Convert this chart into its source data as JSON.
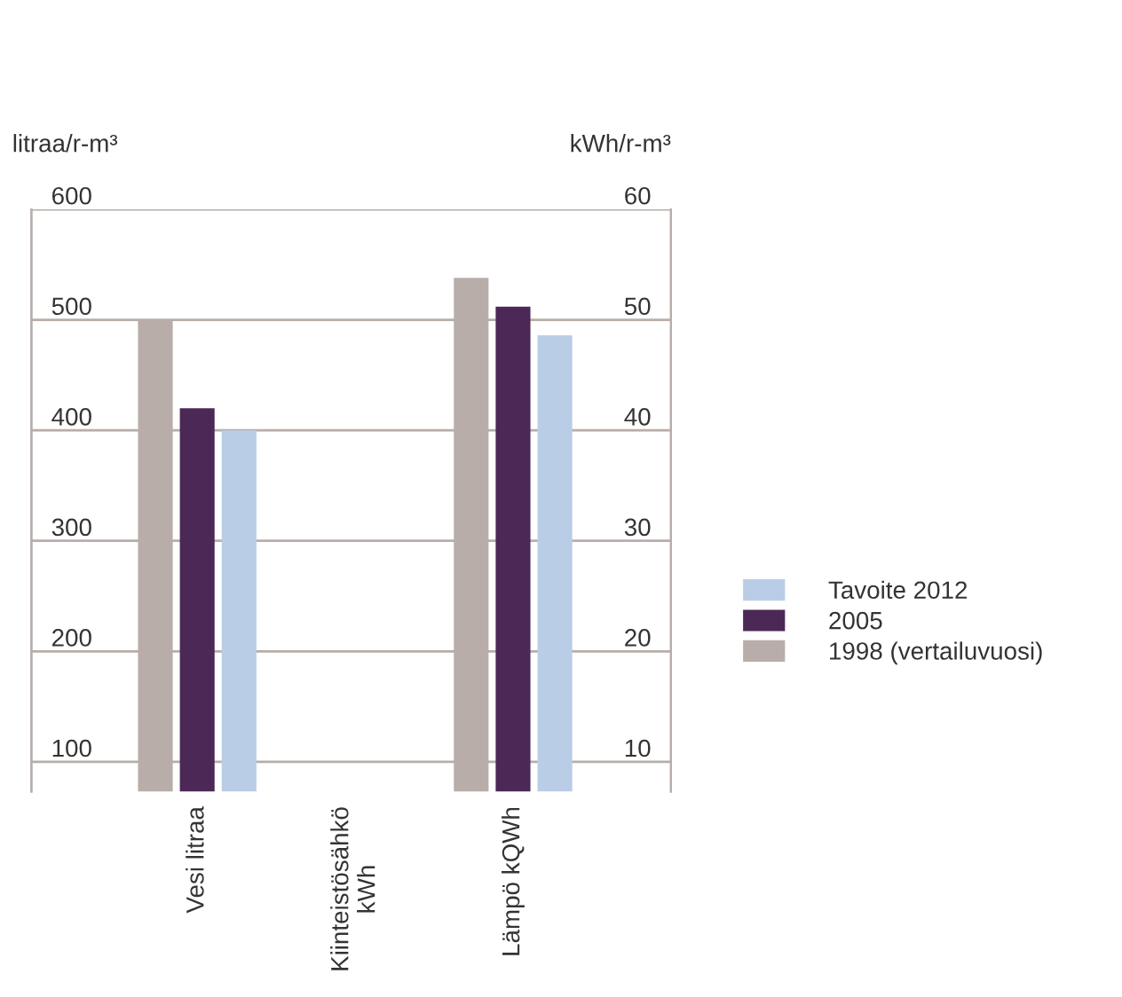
{
  "chart_data": {
    "type": "bar",
    "categories": [
      "Vesi litraa",
      "Kiinteistösähkö\nkWh",
      "Lämpö kQWh"
    ],
    "ylabel": "litraa/r-m³",
    "y2label": "kWh/r-m³",
    "ylim": [
      73,
      600
    ],
    "yticks": [
      100,
      200,
      300,
      400,
      500,
      600
    ],
    "y2lim": [
      7.3,
      60
    ],
    "y2ticks": [
      10,
      20,
      30,
      40,
      50,
      60
    ],
    "grid": "y",
    "legend": "bottom right",
    "series": [
      {
        "name": "1998 (vertailuvuosi)",
        "color": "#b8ada8",
        "values": [
          500,
          null,
          null
        ]
      },
      {
        "name": "2005",
        "color": "#4b2855",
        "values": [
          420,
          null,
          null
        ]
      },
      {
        "name": "Tavoite 2012",
        "color": "#bacde6",
        "values": [
          400,
          null,
          null
        ]
      },
      {
        "color": "#b8ada8",
        "axis": "y2",
        "values": [
          null,
          null,
          53.8
        ]
      },
      {
        "color": "#4b2855",
        "axis": "y2",
        "values": [
          null,
          null,
          51.2
        ]
      },
      {
        "color": "#bacde6",
        "axis": "y2",
        "values": [
          null,
          null,
          48.6
        ]
      }
    ]
  }
}
